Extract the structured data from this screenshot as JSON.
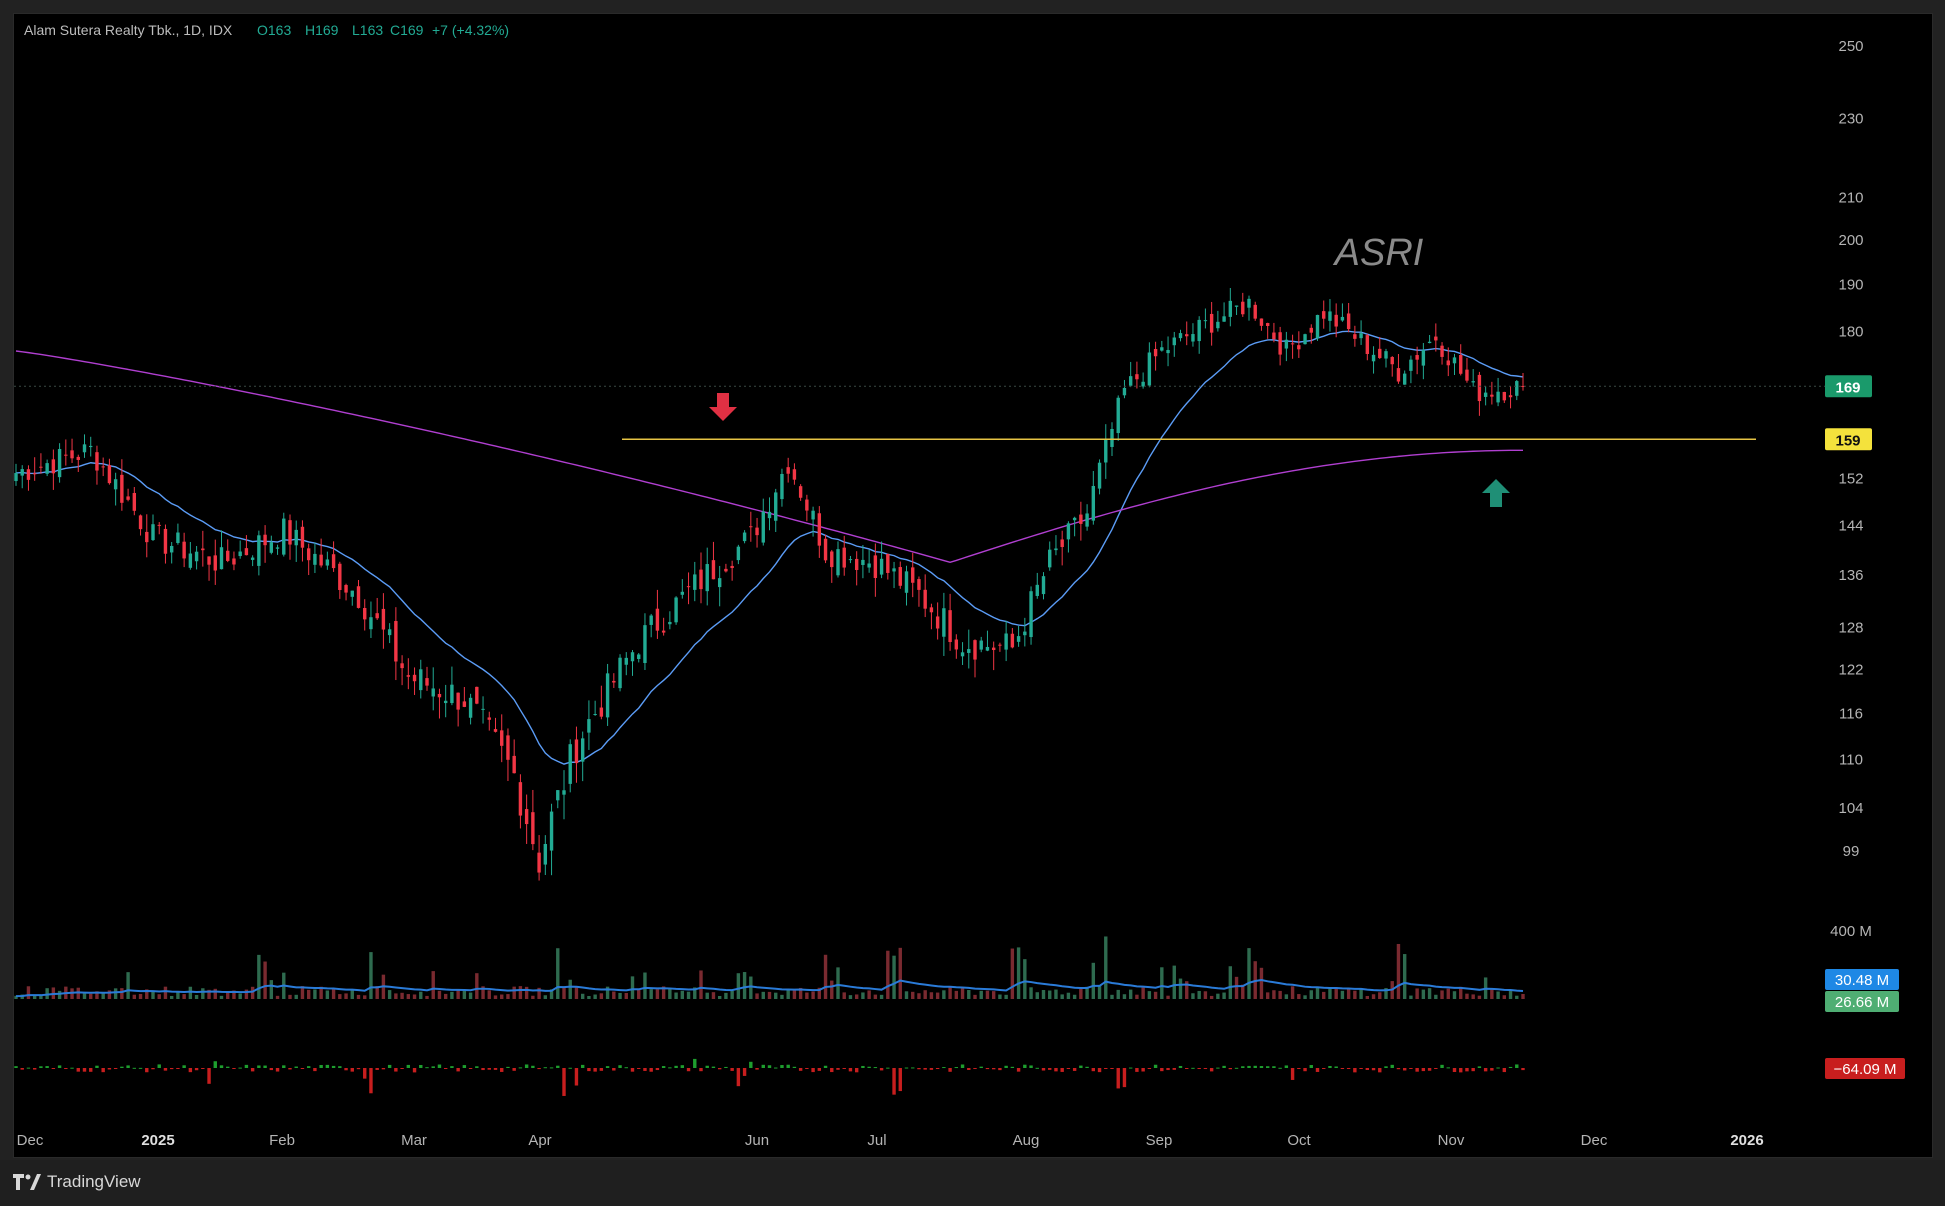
{
  "header": {
    "symbol_info": "Alam Sutera Realty Tbk., 1D, IDX",
    "open": "O163",
    "high": "H169",
    "low": "L163",
    "close": "C169",
    "change": "+7 (+4.32%)"
  },
  "watermark": "ASRI",
  "footer": {
    "brand": "TradingView"
  },
  "colors": {
    "up": "#22ab94",
    "down": "#f23645",
    "ema_fast": "#5b9cf6",
    "ma_slow": "#b03fd0",
    "level": "#e6c445",
    "vol_ma": "#2a7bd8",
    "osc_pos": "#1e9e2e",
    "osc_neg": "#c81e1e"
  },
  "chart_data": {
    "type": "candlestick",
    "price_axis": {
      "ticks": [
        250,
        230,
        210,
        200,
        190,
        180,
        152,
        144,
        136,
        128,
        122,
        116,
        110,
        104,
        99
      ],
      "scale": "log",
      "range": [
        95,
        255
      ]
    },
    "time_axis": {
      "labels": [
        "Dec",
        "2025",
        "Feb",
        "Mar",
        "Apr",
        "Jun",
        "Jul",
        "Aug",
        "Sep",
        "Oct",
        "Nov",
        "Dec",
        "2026"
      ]
    },
    "last_price": {
      "value": 169,
      "label": "169"
    },
    "support_level": {
      "value": 159,
      "label": "159"
    },
    "annotations": [
      {
        "type": "arrow-down",
        "near": "May peak at the 159 level"
      },
      {
        "type": "arrow-up",
        "near": "159 support, November"
      }
    ],
    "anchors": [
      {
        "date": "Dec 2024",
        "close": 153
      },
      {
        "date": "Jan 2025",
        "close": 141
      },
      {
        "date": "Feb 2025",
        "close": 140
      },
      {
        "date": "Mar 2025",
        "close": 120
      },
      {
        "date": "Apr 2025",
        "close": 98
      },
      {
        "date": "May 2025",
        "close": 156
      },
      {
        "date": "Jun 2025",
        "close": 137
      },
      {
        "date": "Jul 2025",
        "close": 125
      },
      {
        "date": "Aug 2025",
        "close": 176
      },
      {
        "date": "Sep 2025",
        "close": 178
      },
      {
        "date": "Oct 2025",
        "close": 178
      },
      {
        "date": "Nov 2025",
        "close": 169
      }
    ],
    "ema_last": 167,
    "ma_last": 157,
    "volume": {
      "axis_label": "400 M",
      "vol_ma_label": "30.48 M",
      "vol_label": "26.66 M"
    },
    "oscillator": {
      "value_label": "−64.09 M"
    }
  }
}
